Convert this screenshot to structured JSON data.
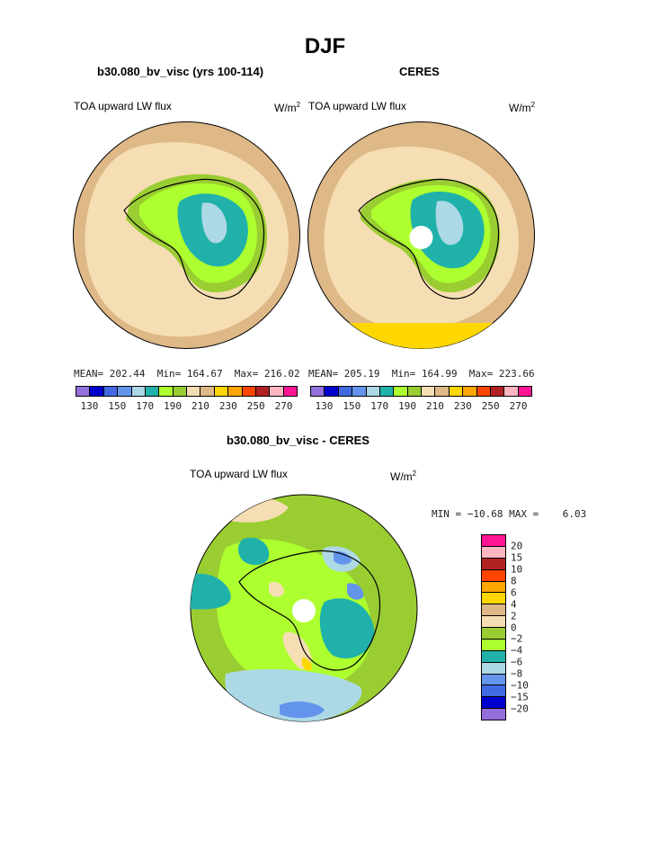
{
  "page_title": "DJF",
  "panels": [
    {
      "title": "b30.080_bv_visc (yrs 100-114)",
      "variable": "TOA upward LW flux",
      "units_base": "W/m",
      "units_exp": "2",
      "stats": "MEAN= 202.44  Min= 164.67  Max= 216.02"
    },
    {
      "title": "CERES",
      "variable": "TOA upward LW flux",
      "units_base": "W/m",
      "units_exp": "2",
      "stats": "MEAN= 205.19  Min= 164.99  Max= 223.66"
    }
  ],
  "difference": {
    "title": "b30.080_bv_visc - CERES",
    "variable": "TOA upward LW flux",
    "units_base": "W/m",
    "units_exp": "2",
    "minmax": "MIN = −10.68 MAX =    6.03"
  },
  "abs_colorbar": {
    "colors": [
      "#9370db",
      "#0000cd",
      "#4169e1",
      "#6495ed",
      "#add8e6",
      "#20b2aa",
      "#adff2f",
      "#9acd32",
      "#f5deb3",
      "#deb887",
      "#ffd700",
      "#ffa500",
      "#ff4500",
      "#b22222",
      "#ffb6c1",
      "#ff1493"
    ],
    "tick_labels": [
      "130",
      "150",
      "170",
      "190",
      "210",
      "230",
      "250",
      "270"
    ]
  },
  "diff_colorbar": {
    "colors": [
      "#ff1493",
      "#ffb6c1",
      "#b22222",
      "#ff4500",
      "#ffa500",
      "#ffd700",
      "#deb887",
      "#f5deb3",
      "#9acd32",
      "#adff2f",
      "#20b2aa",
      "#add8e6",
      "#6495ed",
      "#4169e1",
      "#0000cd",
      "#9370db"
    ],
    "tick_labels": [
      "20",
      "15",
      "10",
      "8",
      "6",
      "4",
      "2",
      "0",
      "−2",
      "−4",
      "−6",
      "−8",
      "−10",
      "−15",
      "−20"
    ]
  }
}
